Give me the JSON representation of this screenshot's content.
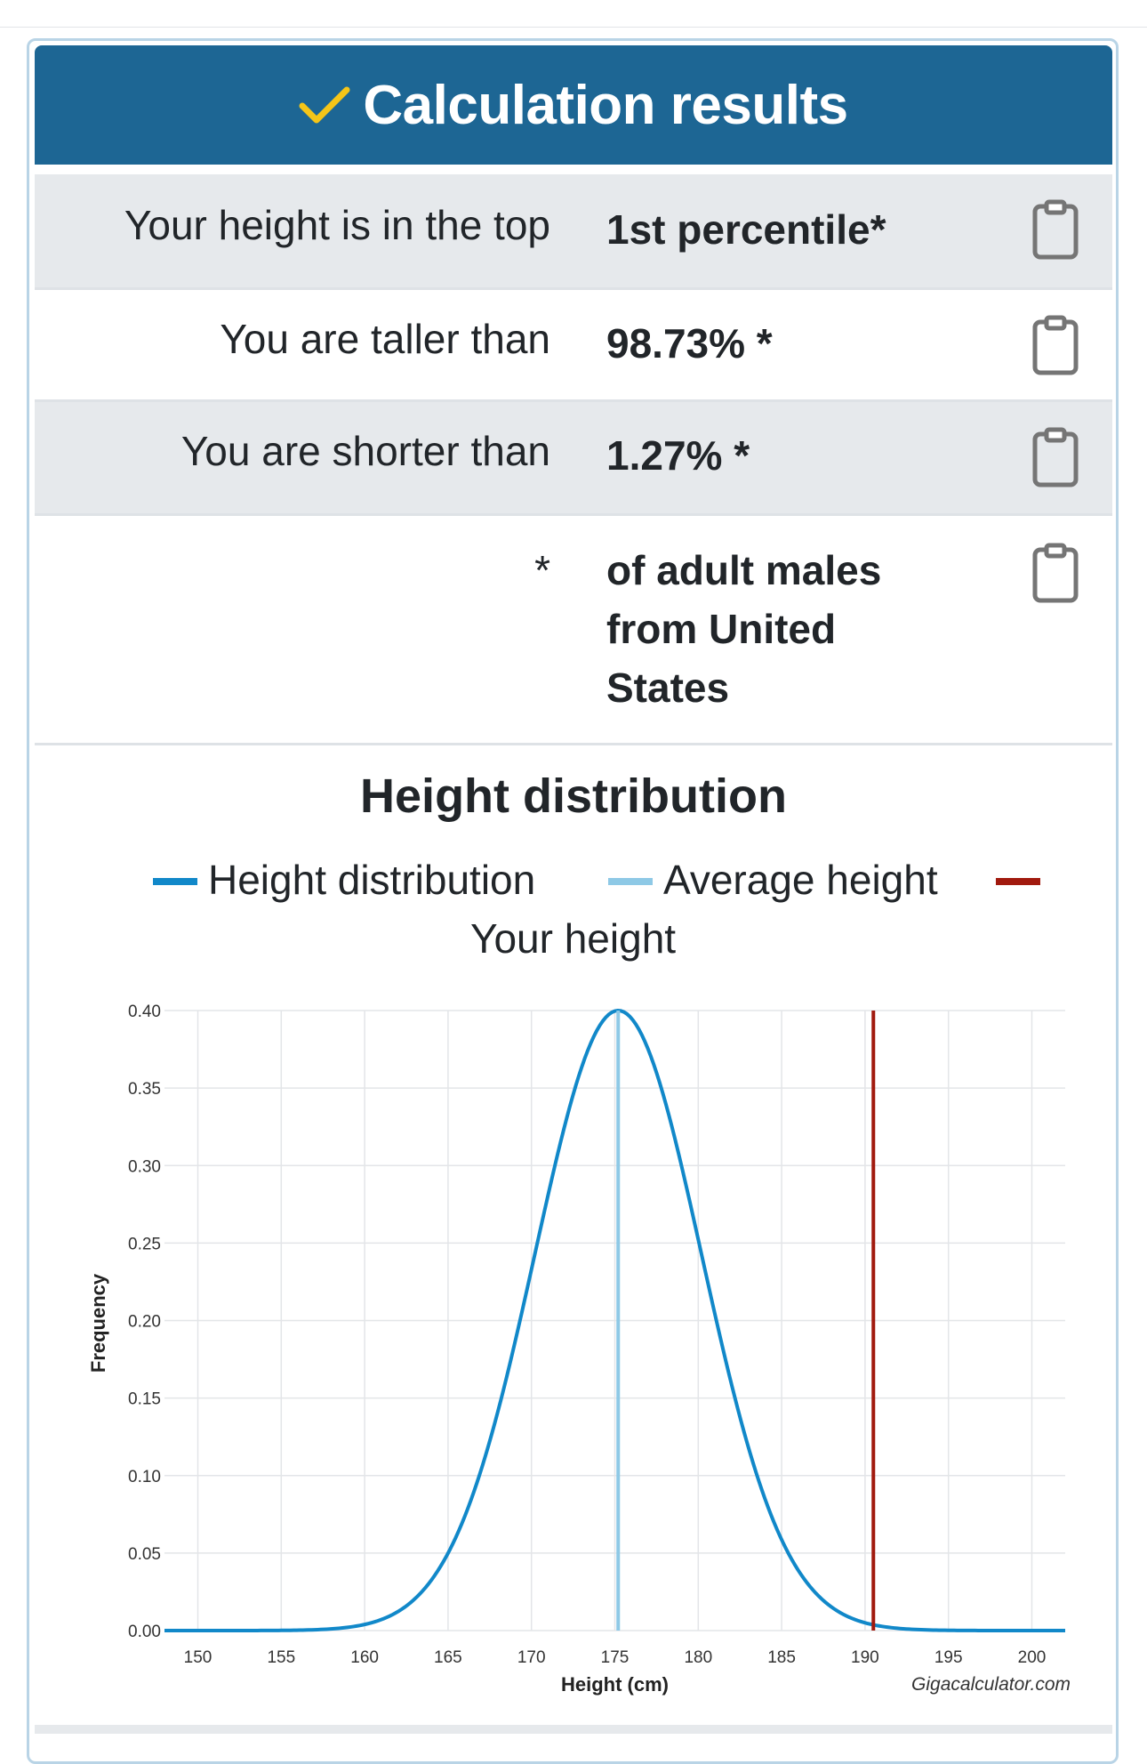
{
  "header": {
    "title": "Calculation results",
    "check_color": "#f5c518",
    "background": "#1d6694"
  },
  "results": [
    {
      "label": "Your height is in the top",
      "value": "1st percentile*",
      "icon": "clipboard-icon"
    },
    {
      "label": "You are taller than",
      "value": "98.73% *",
      "icon": "clipboard-icon"
    },
    {
      "label": "You are shorter than",
      "value": "1.27% *",
      "icon": "clipboard-icon"
    },
    {
      "label": "*",
      "value_lines": [
        "of adult males",
        "from United",
        "States"
      ],
      "icon": "clipboard-icon"
    }
  ],
  "chart_data": {
    "type": "line",
    "title": "Height distribution",
    "legend": [
      {
        "name": "Height distribution",
        "color": "#1188c9"
      },
      {
        "name": "Average height",
        "color": "#8ec9e6"
      },
      {
        "name": "Your height",
        "color": "#a11a0e"
      }
    ],
    "xlabel": "Height (cm)",
    "ylabel": "Frequency",
    "xlim": [
      148,
      202
    ],
    "ylim": [
      0,
      0.4
    ],
    "x_ticks": [
      "150",
      "155",
      "160",
      "165",
      "170",
      "175",
      "180",
      "185",
      "190",
      "195",
      "200"
    ],
    "y_ticks": [
      "0.00",
      "0.05",
      "0.10",
      "0.15",
      "0.20",
      "0.25",
      "0.30",
      "0.35",
      "0.40"
    ],
    "grid": true,
    "series": [
      {
        "name": "Height distribution",
        "mean": 175.2,
        "peak": 0.4,
        "std_index_scale": 5.0,
        "x_start": 148,
        "x_end": 202
      },
      {
        "name": "Average height",
        "x": 175.2
      },
      {
        "name": "Your height",
        "x": 190.5
      }
    ],
    "credit": "Gigacalculator.com"
  }
}
